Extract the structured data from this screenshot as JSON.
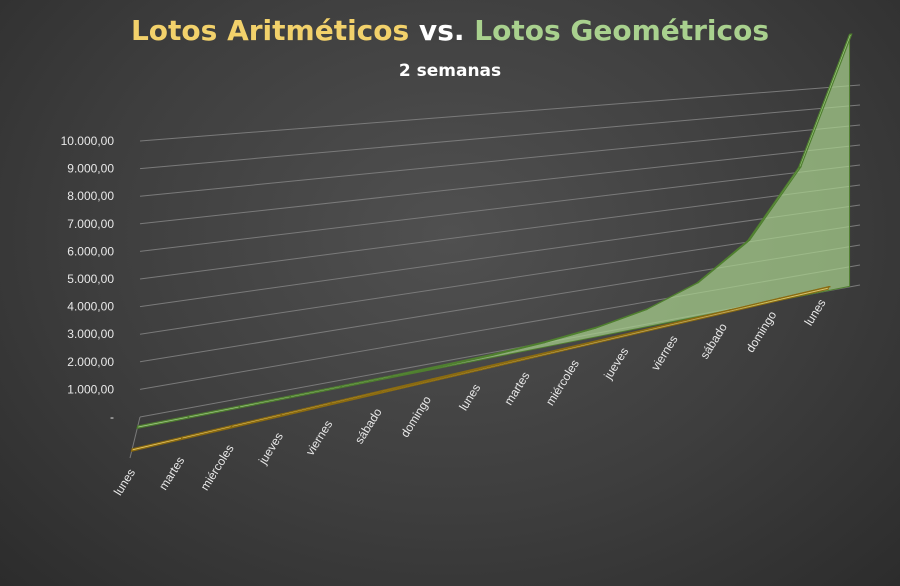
{
  "colors": {
    "arith": "#f2d16b",
    "geom": "#a9d18e",
    "connector": "#ffffff",
    "grid": "#7a7a7a",
    "text": "#e8e8e8"
  },
  "chart_data": {
    "type": "area",
    "view": "3d",
    "title_parts": [
      "Lotos Aritméticos",
      " vs. ",
      "Lotos Geométricos"
    ],
    "subtitle": "2 semanas",
    "categories": [
      "lunes",
      "martes",
      "miércoles",
      "jueves",
      "viernes",
      "sábado",
      "domingo",
      "lunes",
      "martes",
      "miércoles",
      "jueves",
      "viernes",
      "sábado",
      "domingo",
      "lunes"
    ],
    "series": [
      {
        "name": "Lotos Aritméticos",
        "values": [
          10,
          20,
          30,
          40,
          50,
          60,
          70,
          80,
          90,
          100,
          110,
          120,
          130,
          140,
          150
        ]
      },
      {
        "name": "Lotos Geométricos",
        "values": [
          1,
          2,
          4,
          8,
          16,
          32,
          64,
          128,
          256,
          512,
          1024,
          2048,
          4096,
          8192,
          16384
        ]
      }
    ],
    "ytick_labels": [
      "-",
      "1.000,00",
      "2.000,00",
      "3.000,00",
      "4.000,00",
      "5.000,00",
      "6.000,00",
      "7.000,00",
      "8.000,00",
      "9.000,00",
      "10.000,00"
    ],
    "ylim": [
      0,
      10000
    ],
    "grid": true,
    "legend": "none"
  }
}
